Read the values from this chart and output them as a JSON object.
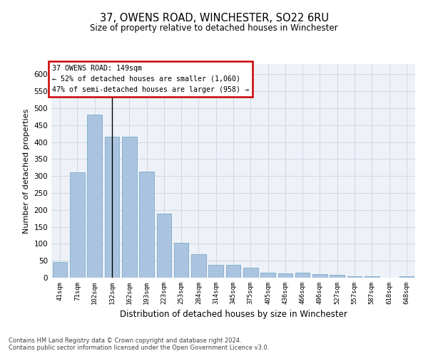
{
  "title": "37, OWENS ROAD, WINCHESTER, SO22 6RU",
  "subtitle": "Size of property relative to detached houses in Winchester",
  "xlabel": "Distribution of detached houses by size in Winchester",
  "ylabel": "Number of detached properties",
  "annotation_title": "37 OWENS ROAD: 149sqm",
  "annotation_line1": "← 52% of detached houses are smaller (1,060)",
  "annotation_line2": "47% of semi-detached houses are larger (958) →",
  "bar_labels": [
    "41sqm",
    "71sqm",
    "102sqm",
    "132sqm",
    "162sqm",
    "193sqm",
    "223sqm",
    "253sqm",
    "284sqm",
    "314sqm",
    "345sqm",
    "375sqm",
    "405sqm",
    "436sqm",
    "466sqm",
    "496sqm",
    "527sqm",
    "557sqm",
    "587sqm",
    "618sqm",
    "648sqm"
  ],
  "bar_values": [
    46,
    311,
    480,
    415,
    415,
    313,
    190,
    103,
    70,
    38,
    38,
    30,
    14,
    12,
    15,
    10,
    8,
    5,
    5,
    0,
    5
  ],
  "bar_color": "#aac4df",
  "bar_edge_color": "#7aaaca",
  "highlight_bar_index": 3,
  "highlight_line_color": "#000000",
  "annotation_box_color": "#ffffff",
  "annotation_box_edge": "#cc0000",
  "ylim": [
    0,
    630
  ],
  "yticks": [
    0,
    50,
    100,
    150,
    200,
    250,
    300,
    350,
    400,
    450,
    500,
    550,
    600
  ],
  "grid_color": "#d0d8e4",
  "bg_color": "#eef2f8",
  "footer_line1": "Contains HM Land Registry data © Crown copyright and database right 2024.",
  "footer_line2": "Contains public sector information licensed under the Open Government Licence v3.0."
}
